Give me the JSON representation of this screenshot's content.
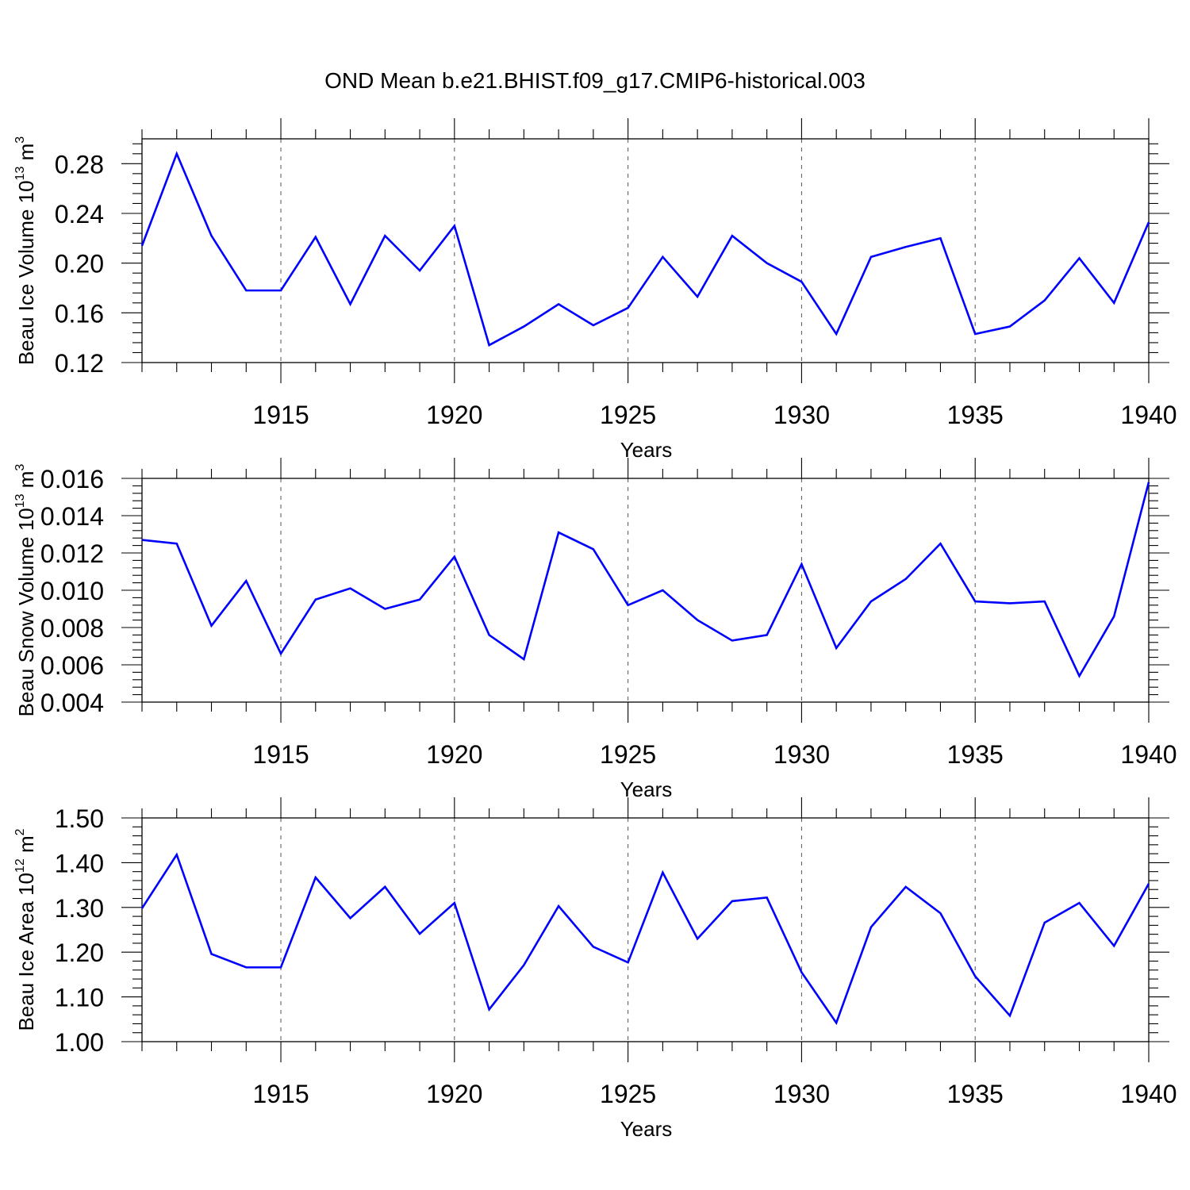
{
  "title": "OND Mean b.e21.BHIST.f09_g17.CMIP6-historical.003",
  "chart_data": [
    {
      "type": "line",
      "ylabel_main": "Beau Ice Volume 10",
      "ylabel_exp": "13",
      "ylabel_unit": " m",
      "ylabel_unit_exp": "3",
      "xlabel": "Years",
      "xlim": [
        1911,
        1940
      ],
      "ylim": [
        0.12,
        0.3
      ],
      "yticks": [
        0.12,
        0.16,
        0.2,
        0.24,
        0.28
      ],
      "ytick_labels": [
        "0.12",
        "0.16",
        "0.20",
        "0.24",
        "0.28"
      ],
      "xticks": [
        1915,
        1920,
        1925,
        1930,
        1935,
        1940
      ],
      "xtick_labels": [
        "1915",
        "1920",
        "1925",
        "1930",
        "1935",
        "1940"
      ],
      "grid": "vertical dashed at major x ticks",
      "series_color": "#0000ff",
      "x": [
        1911,
        1912,
        1913,
        1914,
        1915,
        1916,
        1917,
        1918,
        1919,
        1920,
        1921,
        1922,
        1923,
        1924,
        1925,
        1926,
        1927,
        1928,
        1929,
        1930,
        1931,
        1932,
        1933,
        1934,
        1935,
        1936,
        1937,
        1938,
        1939,
        1940
      ],
      "values": [
        0.214,
        0.288,
        0.222,
        0.178,
        0.178,
        0.221,
        0.167,
        0.222,
        0.194,
        0.23,
        0.134,
        0.149,
        0.167,
        0.15,
        0.164,
        0.205,
        0.173,
        0.222,
        0.2,
        0.185,
        0.143,
        0.205,
        0.213,
        0.22,
        0.143,
        0.149,
        0.17,
        0.204,
        0.168,
        0.233
      ]
    },
    {
      "type": "line",
      "ylabel_main": "Beau Snow Volume 10",
      "ylabel_exp": "13",
      "ylabel_unit": " m",
      "ylabel_unit_exp": "3",
      "xlabel": "Years",
      "xlim": [
        1911,
        1940
      ],
      "ylim": [
        0.004,
        0.016
      ],
      "yticks": [
        0.004,
        0.006,
        0.008,
        0.01,
        0.012,
        0.014,
        0.016
      ],
      "ytick_labels": [
        "0.004",
        "0.006",
        "0.008",
        "0.010",
        "0.012",
        "0.014",
        "0.016"
      ],
      "xticks": [
        1915,
        1920,
        1925,
        1930,
        1935,
        1940
      ],
      "xtick_labels": [
        "1915",
        "1920",
        "1925",
        "1930",
        "1935",
        "1940"
      ],
      "grid": "vertical dashed at major x ticks",
      "series_color": "#0000ff",
      "x": [
        1911,
        1912,
        1913,
        1914,
        1915,
        1916,
        1917,
        1918,
        1919,
        1920,
        1921,
        1922,
        1923,
        1924,
        1925,
        1926,
        1927,
        1928,
        1929,
        1930,
        1931,
        1932,
        1933,
        1934,
        1935,
        1936,
        1937,
        1938,
        1939,
        1940
      ],
      "values": [
        0.0127,
        0.0125,
        0.0081,
        0.0105,
        0.0066,
        0.0095,
        0.0101,
        0.009,
        0.0095,
        0.0118,
        0.0076,
        0.0063,
        0.0131,
        0.0122,
        0.0092,
        0.01,
        0.0084,
        0.0073,
        0.0076,
        0.0114,
        0.0069,
        0.0094,
        0.0106,
        0.0125,
        0.0094,
        0.0093,
        0.0094,
        0.0054,
        0.0086,
        0.0158
      ]
    },
    {
      "type": "line",
      "ylabel_main": "Beau Ice Area 10",
      "ylabel_exp": "12",
      "ylabel_unit": " m",
      "ylabel_unit_exp": "2",
      "xlabel": "Years",
      "xlim": [
        1911,
        1940
      ],
      "ylim": [
        1.0,
        1.5
      ],
      "yticks": [
        1.0,
        1.1,
        1.2,
        1.3,
        1.4,
        1.5
      ],
      "ytick_labels": [
        "1.00",
        "1.10",
        "1.20",
        "1.30",
        "1.40",
        "1.50"
      ],
      "xticks": [
        1915,
        1920,
        1925,
        1930,
        1935,
        1940
      ],
      "xtick_labels": [
        "1915",
        "1920",
        "1925",
        "1930",
        "1935",
        "1940"
      ],
      "grid": "vertical dashed at major x ticks",
      "series_color": "#0000ff",
      "x": [
        1911,
        1912,
        1913,
        1914,
        1915,
        1916,
        1917,
        1918,
        1919,
        1920,
        1921,
        1922,
        1923,
        1924,
        1925,
        1926,
        1927,
        1928,
        1929,
        1930,
        1931,
        1932,
        1933,
        1934,
        1935,
        1936,
        1937,
        1938,
        1939,
        1940
      ],
      "values": [
        1.298,
        1.418,
        1.196,
        1.166,
        1.166,
        1.367,
        1.276,
        1.346,
        1.241,
        1.31,
        1.072,
        1.171,
        1.303,
        1.212,
        1.177,
        1.378,
        1.23,
        1.314,
        1.322,
        1.155,
        1.042,
        1.256,
        1.346,
        1.287,
        1.146,
        1.058,
        1.266,
        1.31,
        1.214,
        1.353
      ]
    }
  ]
}
